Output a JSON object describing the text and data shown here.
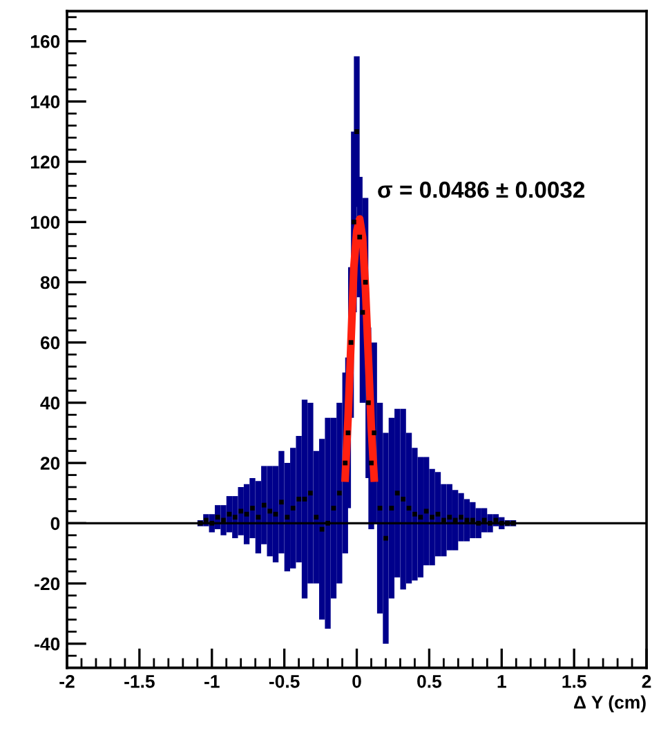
{
  "chart_data": {
    "type": "scatter",
    "xlabel": "Δ Y (cm)",
    "annotations": [
      "σ = 0.0486 ± 0.0032"
    ],
    "xlim": [
      -2,
      2
    ],
    "ylim": [
      -48,
      170
    ],
    "xticks": [
      -2,
      -1.5,
      -1,
      -0.5,
      0,
      0.5,
      1,
      1.5,
      2
    ],
    "yticks": [
      -40,
      -20,
      0,
      20,
      40,
      60,
      80,
      100,
      120,
      140,
      160
    ],
    "grid": false,
    "ref_lines": [
      {
        "axis": "y",
        "value": 0,
        "color": "#000000"
      }
    ],
    "series": [
      {
        "color": "#000000",
        "marker": "square",
        "x": [
          -1.08,
          -1.04,
          -1.0,
          -0.96,
          -0.92,
          -0.88,
          -0.84,
          -0.8,
          -0.76,
          -0.72,
          -0.68,
          -0.64,
          -0.6,
          -0.56,
          -0.52,
          -0.48,
          -0.44,
          -0.4,
          -0.36,
          -0.32,
          -0.28,
          -0.24,
          -0.2,
          -0.16,
          -0.12,
          -0.08,
          -0.06,
          -0.04,
          -0.02,
          0.0,
          0.02,
          0.04,
          0.06,
          0.08,
          0.1,
          0.12,
          0.16,
          0.2,
          0.24,
          0.28,
          0.32,
          0.36,
          0.4,
          0.44,
          0.48,
          0.52,
          0.56,
          0.6,
          0.64,
          0.68,
          0.72,
          0.76,
          0.8,
          0.84,
          0.88,
          0.92,
          0.96,
          1.0,
          1.04,
          1.08
        ],
        "values": [
          0,
          1,
          0,
          2,
          1,
          3,
          2,
          4,
          3,
          5,
          2,
          6,
          4,
          3,
          7,
          2,
          5,
          8,
          8,
          10,
          2,
          -2,
          0,
          5,
          10,
          20,
          30,
          60,
          100,
          130,
          95,
          70,
          80,
          40,
          20,
          30,
          5,
          -5,
          5,
          10,
          8,
          5,
          3,
          2,
          4,
          2,
          3,
          1,
          2,
          1,
          2,
          1,
          1,
          0,
          1,
          0,
          1,
          0,
          0,
          0
        ],
        "errors": [
          1,
          2,
          3,
          4,
          5,
          6,
          7,
          8,
          10,
          10,
          12,
          13,
          15,
          16,
          17,
          18,
          20,
          21,
          33,
          30,
          22,
          30,
          35,
          30,
          30,
          30,
          25,
          25,
          30,
          25,
          20,
          30,
          28,
          25,
          22,
          30,
          35,
          35,
          30,
          28,
          30,
          25,
          22,
          20,
          18,
          16,
          14,
          12,
          11,
          10,
          8,
          7,
          6,
          5,
          4,
          3,
          2,
          2,
          1,
          1
        ]
      },
      {
        "type": "line",
        "color": "#ff2010",
        "x": [
          -0.08,
          -0.06,
          -0.04,
          -0.02,
          0.0,
          0.02,
          0.04,
          0.06,
          0.08,
          0.1,
          0.12
        ],
        "values": [
          15,
          35,
          60,
          85,
          97,
          101,
          95,
          78,
          55,
          32,
          15
        ]
      }
    ]
  }
}
